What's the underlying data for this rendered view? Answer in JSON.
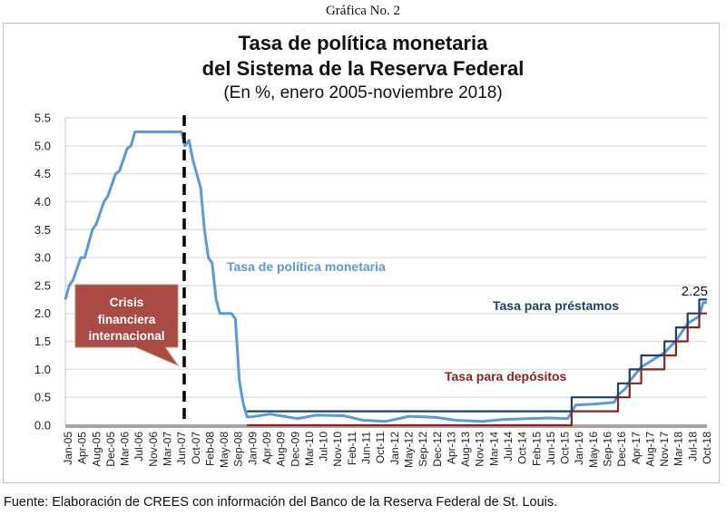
{
  "caption": "Gráfica No. 2",
  "source_note": "Fuente: Elaboración de CREES con información del Banco de la Reserva Federal de St. Louis.",
  "chart_data": {
    "type": "line",
    "title": "Tasa de política monetaria del Sistema de la Reserva Federal",
    "title_lines": [
      "Tasa de política monetaria",
      "del Sistema de la Reserva Federal"
    ],
    "subtitle": "(En %, enero 2005-noviembre 2018)",
    "xlabel": "",
    "ylabel": "",
    "ylim": [
      0,
      5.5
    ],
    "yticks": [
      "0.0",
      "0.5",
      "1.0",
      "1.5",
      "2.0",
      "2.5",
      "3.0",
      "3.5",
      "4.0",
      "4.5",
      "5.0",
      "5.5"
    ],
    "grid": true,
    "x_range": [
      "2005-01",
      "2018-11"
    ],
    "xticks": [
      "Jan-05",
      "Apr-05",
      "Aug-05",
      "Dec-05",
      "Mar-06",
      "Jul-06",
      "Nov-06",
      "Mar-07",
      "Jun-07",
      "Oct-07",
      "Feb-08",
      "May-08",
      "Sep-08",
      "Jan-09",
      "Apr-09",
      "Aug-09",
      "Dec-09",
      "Mar-10",
      "Jul-10",
      "Nov-10",
      "Feb-11",
      "Jun-11",
      "Oct-11",
      "Jan-12",
      "May-12",
      "Sep-12",
      "Dec-12",
      "Apr-13",
      "Aug-13",
      "Nov-13",
      "Mar-14",
      "Jul-14",
      "Oct-14",
      "Feb-15",
      "Jun-15",
      "Oct-15",
      "Jan-16",
      "May-16",
      "Sep-16",
      "Dec-16",
      "Apr-17",
      "Aug-17",
      "Nov-17",
      "Mar-18",
      "Jul-18",
      "Oct-18"
    ],
    "series": [
      {
        "name": "Tasa de política monetaria",
        "color": "#5b9bd5",
        "points": [
          [
            "2005-01",
            2.25
          ],
          [
            "2005-02",
            2.5
          ],
          [
            "2005-03",
            2.6
          ],
          [
            "2005-04",
            2.8
          ],
          [
            "2005-05",
            3.0
          ],
          [
            "2005-06",
            3.0
          ],
          [
            "2005-07",
            3.25
          ],
          [
            "2005-08",
            3.5
          ],
          [
            "2005-09",
            3.6
          ],
          [
            "2005-10",
            3.8
          ],
          [
            "2005-11",
            4.0
          ],
          [
            "2005-12",
            4.1
          ],
          [
            "2006-01",
            4.3
          ],
          [
            "2006-02",
            4.5
          ],
          [
            "2006-03",
            4.55
          ],
          [
            "2006-04",
            4.75
          ],
          [
            "2006-05",
            4.95
          ],
          [
            "2006-06",
            5.0
          ],
          [
            "2006-07",
            5.25
          ],
          [
            "2006-08",
            5.25
          ],
          [
            "2006-09",
            5.25
          ],
          [
            "2006-10",
            5.25
          ],
          [
            "2006-11",
            5.25
          ],
          [
            "2006-12",
            5.25
          ],
          [
            "2007-01",
            5.25
          ],
          [
            "2007-02",
            5.25
          ],
          [
            "2007-03",
            5.25
          ],
          [
            "2007-04",
            5.25
          ],
          [
            "2007-05",
            5.25
          ],
          [
            "2007-06",
            5.25
          ],
          [
            "2007-07",
            5.25
          ],
          [
            "2007-08",
            5.0
          ],
          [
            "2007-09",
            5.1
          ],
          [
            "2007-10",
            4.75
          ],
          [
            "2007-11",
            4.5
          ],
          [
            "2007-12",
            4.25
          ],
          [
            "2008-01",
            3.5
          ],
          [
            "2008-02",
            3.0
          ],
          [
            "2008-03",
            2.9
          ],
          [
            "2008-04",
            2.25
          ],
          [
            "2008-05",
            2.0
          ],
          [
            "2008-06",
            2.0
          ],
          [
            "2008-07",
            2.0
          ],
          [
            "2008-08",
            2.0
          ],
          [
            "2008-09",
            1.9
          ],
          [
            "2008-10",
            0.8
          ],
          [
            "2008-11",
            0.4
          ],
          [
            "2008-12",
            0.15
          ],
          [
            "2009-01",
            0.15
          ],
          [
            "2009-06",
            0.2
          ],
          [
            "2010-01",
            0.12
          ],
          [
            "2010-06",
            0.18
          ],
          [
            "2011-01",
            0.17
          ],
          [
            "2011-06",
            0.09
          ],
          [
            "2011-12",
            0.07
          ],
          [
            "2012-06",
            0.16
          ],
          [
            "2013-01",
            0.14
          ],
          [
            "2013-06",
            0.09
          ],
          [
            "2014-01",
            0.07
          ],
          [
            "2014-06",
            0.1
          ],
          [
            "2015-01",
            0.12
          ],
          [
            "2015-06",
            0.13
          ],
          [
            "2015-11",
            0.12
          ],
          [
            "2015-12",
            0.24
          ],
          [
            "2016-01",
            0.36
          ],
          [
            "2016-06",
            0.38
          ],
          [
            "2016-11",
            0.41
          ],
          [
            "2016-12",
            0.54
          ],
          [
            "2017-02",
            0.66
          ],
          [
            "2017-03",
            0.79
          ],
          [
            "2017-06",
            1.04
          ],
          [
            "2017-12",
            1.3
          ],
          [
            "2018-03",
            1.51
          ],
          [
            "2018-06",
            1.82
          ],
          [
            "2018-09",
            1.95
          ],
          [
            "2018-10",
            2.19
          ],
          [
            "2018-11",
            2.2
          ]
        ]
      },
      {
        "name": "Tasa para préstamos",
        "color": "#1f3f6a",
        "points": [
          [
            "2008-12",
            0.25
          ],
          [
            "2015-12",
            0.25
          ],
          [
            "2015-12",
            0.5
          ],
          [
            "2016-12",
            0.5
          ],
          [
            "2016-12",
            0.75
          ],
          [
            "2017-03",
            0.75
          ],
          [
            "2017-03",
            1.0
          ],
          [
            "2017-06",
            1.0
          ],
          [
            "2017-06",
            1.25
          ],
          [
            "2017-12",
            1.25
          ],
          [
            "2017-12",
            1.5
          ],
          [
            "2018-03",
            1.5
          ],
          [
            "2018-03",
            1.75
          ],
          [
            "2018-06",
            1.75
          ],
          [
            "2018-06",
            2.0
          ],
          [
            "2018-09",
            2.0
          ],
          [
            "2018-09",
            2.25
          ],
          [
            "2018-11",
            2.25
          ]
        ]
      },
      {
        "name": "Tasa para depósitos",
        "color": "#8b2323",
        "points": [
          [
            "2008-12",
            0.0
          ],
          [
            "2015-12",
            0.0
          ],
          [
            "2015-12",
            0.25
          ],
          [
            "2016-12",
            0.25
          ],
          [
            "2016-12",
            0.5
          ],
          [
            "2017-03",
            0.5
          ],
          [
            "2017-03",
            0.75
          ],
          [
            "2017-06",
            0.75
          ],
          [
            "2017-06",
            1.0
          ],
          [
            "2017-12",
            1.0
          ],
          [
            "2017-12",
            1.25
          ],
          [
            "2018-03",
            1.25
          ],
          [
            "2018-03",
            1.5
          ],
          [
            "2018-06",
            1.5
          ],
          [
            "2018-06",
            1.75
          ],
          [
            "2018-09",
            1.75
          ],
          [
            "2018-09",
            2.0
          ],
          [
            "2018-11",
            2.0
          ]
        ]
      }
    ],
    "annotations": [
      {
        "text": "Tasa de política monetaria",
        "color": "#5b9bd5",
        "at": [
          "2009-02",
          2.85
        ]
      },
      {
        "text": "Tasa para préstamos",
        "color": "#1f3f6a",
        "at": [
          "2014-10",
          2.1
        ]
      },
      {
        "text": "Tasa para depósitos",
        "color": "#8b2323",
        "at": [
          "2013-10",
          0.9
        ]
      },
      {
        "text": "2.25",
        "color": "#111111",
        "at": [
          "2018-10",
          2.4
        ]
      },
      {
        "text_lines": [
          "Crisis",
          "financiera",
          "internacional"
        ],
        "type": "callout",
        "fill": "#a94a45",
        "text_color": "#ffffff"
      }
    ],
    "vertical_marker": {
      "date": "2007-08",
      "style": "dashed",
      "color": "#000000",
      "label": "Crisis financiera internacional"
    }
  }
}
